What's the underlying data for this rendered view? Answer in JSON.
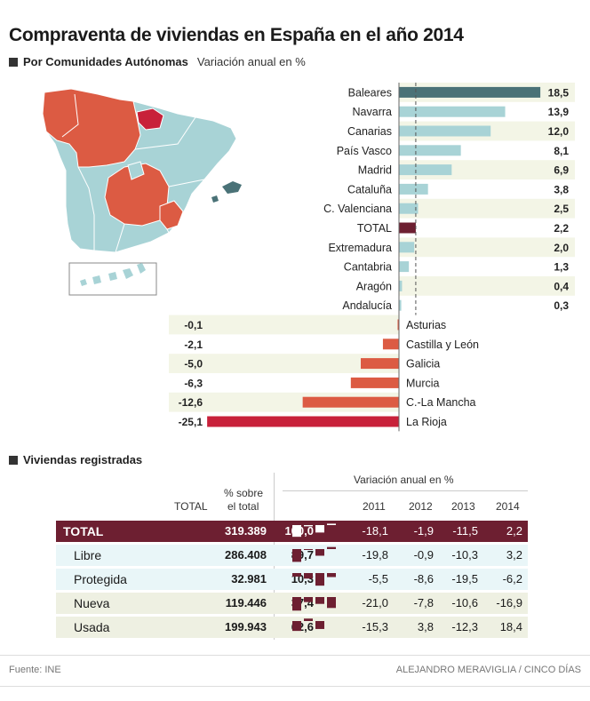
{
  "title": "Compraventa de viviendas en España en el año 2014",
  "section1": {
    "label": "Por Comunidades Autónomas",
    "unit": "Variación anual en %"
  },
  "chart_data": {
    "type": "bar",
    "orientation": "horizontal",
    "categories": [
      "Baleares",
      "Navarra",
      "Canarias",
      "País Vasco",
      "Madrid",
      "Cataluña",
      "C. Valenciana",
      "TOTAL",
      "Extremadura",
      "Cantabria",
      "Aragón",
      "Andalucía",
      "Asturias",
      "Castilla y León",
      "Galicia",
      "Murcia",
      "C.-La Mancha",
      "La Rioja"
    ],
    "values": [
      18.5,
      13.9,
      12.0,
      8.1,
      6.9,
      3.8,
      2.5,
      2.2,
      2.0,
      1.3,
      0.4,
      0.3,
      -0.1,
      -2.1,
      -5.0,
      -6.3,
      -12.6,
      -25.1
    ],
    "value_labels": [
      "18,5",
      "13,9",
      "12,0",
      "8,1",
      "6,9",
      "3,8",
      "2,5",
      "2,2",
      "2,0",
      "1,3",
      "0,4",
      "0,3",
      "-0,1",
      "-2,1",
      "-5,0",
      "-6,3",
      "-12,6",
      "-25,1"
    ],
    "xlabel": "",
    "ylabel": "",
    "reference_line": 2.2,
    "colors": {
      "top": "#4a7277",
      "positive": "#a8d3d6",
      "total": "#6d1f31",
      "negative": "#dc5b43",
      "min": "#c8213a"
    }
  },
  "section2": {
    "label": "Viviendas registradas"
  },
  "table": {
    "col_total": "TOTAL",
    "col_share_1": "% sobre",
    "col_share_2": "el total",
    "variation_header": "Variación anual en %",
    "years": [
      "2011",
      "2012",
      "2013",
      "2014"
    ],
    "rows": [
      {
        "name": "TOTAL",
        "total": "319.389",
        "share": "100,0",
        "vars": [
          "-18,1",
          "-1,9",
          "-11,5",
          "2,2"
        ],
        "values": [
          -18.1,
          -1.9,
          -11.5,
          2.2
        ]
      },
      {
        "name": "Libre",
        "total": "286.408",
        "share": "89,7",
        "vars": [
          "-19,8",
          "-0,9",
          "-10,3",
          "3,2"
        ],
        "values": [
          -19.8,
          -0.9,
          -10.3,
          3.2
        ]
      },
      {
        "name": "Protegida",
        "total": "32.981",
        "share": "10,3",
        "vars": [
          "-5,5",
          "-8,6",
          "-19,5",
          "-6,2"
        ],
        "values": [
          -5.5,
          -8.6,
          -19.5,
          -6.2
        ]
      },
      {
        "name": "Nueva",
        "total": "119.446",
        "share": "37,4",
        "vars": [
          "-21,0",
          "-7,8",
          "-10,6",
          "-16,9"
        ],
        "values": [
          -21.0,
          -7.8,
          -10.6,
          -16.9
        ]
      },
      {
        "name": "Usada",
        "total": "199.943",
        "share": "62,6",
        "vars": [
          "-15,3",
          "3,8",
          "-12,3",
          "18,4"
        ],
        "values": [
          -15.3,
          3.8,
          -12.3,
          18.4
        ]
      }
    ]
  },
  "footer": {
    "source": "Fuente: INE",
    "credit": "ALEJANDRO MERAVIGLIA / CINCO DÍAS"
  }
}
